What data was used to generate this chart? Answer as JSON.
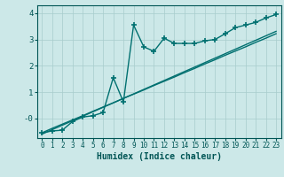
{
  "title": "",
  "xlabel": "Humidex (Indice chaleur)",
  "ylabel": "",
  "bg_color": "#cce8e8",
  "line_color": "#007070",
  "x_data": [
    0,
    1,
    2,
    3,
    4,
    5,
    6,
    7,
    8,
    9,
    10,
    11,
    12,
    13,
    14,
    15,
    16,
    17,
    18,
    19,
    20,
    21,
    22,
    23
  ],
  "y_scatter": [
    -0.55,
    -0.48,
    -0.45,
    -0.12,
    0.05,
    0.1,
    0.22,
    1.55,
    0.62,
    3.55,
    2.72,
    2.55,
    3.05,
    2.85,
    2.85,
    2.85,
    2.95,
    3.0,
    3.22,
    3.45,
    3.55,
    3.65,
    3.82,
    3.95
  ],
  "y_reg1": [
    -0.55,
    -0.38,
    -0.22,
    -0.06,
    0.1,
    0.27,
    0.43,
    0.59,
    0.76,
    0.92,
    1.08,
    1.25,
    1.41,
    1.57,
    1.74,
    1.9,
    2.07,
    2.23,
    2.4,
    2.56,
    2.72,
    2.89,
    3.05,
    3.22
  ],
  "y_reg2": [
    -0.6,
    -0.43,
    -0.26,
    -0.09,
    0.08,
    0.25,
    0.42,
    0.59,
    0.76,
    0.93,
    1.1,
    1.27,
    1.44,
    1.61,
    1.78,
    1.95,
    2.12,
    2.29,
    2.46,
    2.63,
    2.8,
    2.97,
    3.14,
    3.31
  ],
  "ylim": [
    -0.75,
    4.3
  ],
  "xlim": [
    -0.5,
    23.5
  ],
  "yticks": [
    0,
    1,
    2,
    3,
    4
  ],
  "ytick_labels": [
    "-0",
    "1",
    "2",
    "3",
    "4"
  ],
  "grid_color": "#a8cccc",
  "marker": "+",
  "markersize": 5,
  "markeredgewidth": 1.2,
  "linewidth": 1.0,
  "font_color": "#005555",
  "xlabel_fontsize": 7,
  "tick_fontsize": 5.5
}
